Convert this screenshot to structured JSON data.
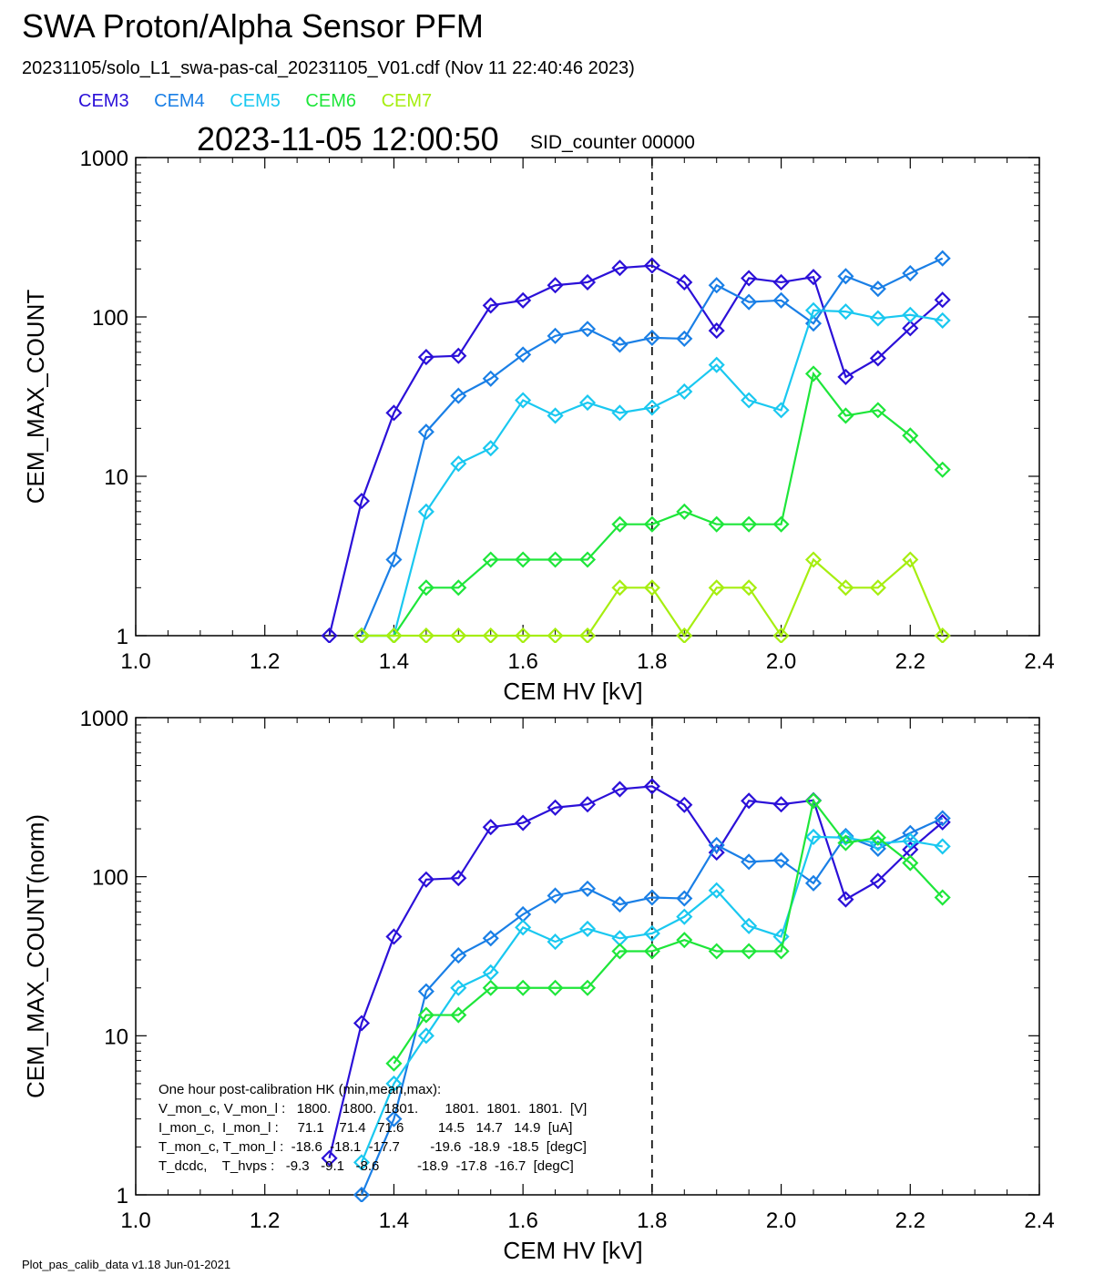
{
  "header": {
    "title": "SWA Proton/Alpha Sensor PFM",
    "file_line": "20231105/solo_L1_swa-pas-cal_20231105_V01.cdf  (Nov 11 22:40:46 2023)",
    "timestamp": "2023-11-05 12:00:50",
    "sid_counter": "SID_counter 00000"
  },
  "legend": [
    {
      "label": "CEM3",
      "color": "#2b10d8"
    },
    {
      "label": "CEM4",
      "color": "#1a7fe6"
    },
    {
      "label": "CEM5",
      "color": "#1ac8f0"
    },
    {
      "label": "CEM6",
      "color": "#1ee63a"
    },
    {
      "label": "CEM7",
      "color": "#a6ee10"
    }
  ],
  "hk_block": {
    "title": "One hour post-calibration HK (min,mean,max):",
    "rows": [
      "V_mon_c, V_mon_l :   1800.   1800.  1801.       1801.  1801.  1801.  [V]",
      "I_mon_c,  I_mon_l :     71.1    71.4   71.6         14.5   14.7   14.9  [uA]",
      "T_mon_c, T_mon_l :  -18.6  -18.1  -17.7        -19.6  -18.9  -18.5  [degC]",
      "T_dcdc,    T_hvps :   -9.3   -9.1   -8.6          -18.9  -17.8  -16.7  [degC]"
    ]
  },
  "footer": "Plot_pas_calib_data v1.18 Jun-01-2021",
  "chart_data": [
    {
      "type": "line",
      "ylabel": "CEM_MAX_COUNT",
      "xlabel": "CEM HV [kV]",
      "y_log": true,
      "xlim": [
        1.0,
        2.4
      ],
      "ylim": [
        1,
        1000
      ],
      "x_ticks": [
        "1.0",
        "1.2",
        "1.4",
        "1.6",
        "1.8",
        "2.0",
        "2.2",
        "2.4"
      ],
      "y_ticks": [
        "1",
        "10",
        "100",
        "1000"
      ],
      "vline_x": 1.8,
      "x": [
        1.3,
        1.35,
        1.4,
        1.45,
        1.5,
        1.55,
        1.6,
        1.65,
        1.7,
        1.75,
        1.8,
        1.85,
        1.9,
        1.95,
        2.0,
        2.05,
        2.1,
        2.15,
        2.2,
        2.25
      ],
      "series": [
        {
          "name": "CEM3",
          "values": [
            1,
            7,
            25,
            56,
            57,
            118,
            127,
            158,
            165,
            203,
            210,
            165,
            82,
            175,
            165,
            178,
            42,
            55,
            85,
            128
          ]
        },
        {
          "name": "CEM4",
          "values": [
            null,
            1,
            3,
            19,
            32,
            41,
            58,
            76,
            84,
            67,
            74,
            73,
            158,
            124,
            127,
            91,
            180,
            150,
            188,
            233
          ]
        },
        {
          "name": "CEM5",
          "values": [
            null,
            1,
            1,
            6,
            12,
            15,
            30,
            24,
            29,
            25,
            27,
            34,
            50,
            30,
            26,
            110,
            108,
            98,
            103,
            95
          ]
        },
        {
          "name": "CEM6",
          "values": [
            null,
            1,
            1,
            2,
            2,
            3,
            3,
            3,
            3,
            5,
            5,
            6,
            5,
            5,
            5,
            44,
            24,
            26,
            18,
            11
          ]
        },
        {
          "name": "CEM7",
          "values": [
            null,
            1,
            1,
            1,
            1,
            1,
            1,
            1,
            1,
            2,
            2,
            1,
            2,
            2,
            1,
            3,
            2,
            2,
            3,
            1
          ]
        }
      ]
    },
    {
      "type": "line",
      "ylabel": "CEM_MAX_COUNT(norm)",
      "xlabel": "CEM HV [kV]",
      "y_log": true,
      "xlim": [
        1.0,
        2.4
      ],
      "ylim": [
        1,
        1000
      ],
      "x_ticks": [
        "1.0",
        "1.2",
        "1.4",
        "1.6",
        "1.8",
        "2.0",
        "2.2",
        "2.4"
      ],
      "y_ticks": [
        "1",
        "10",
        "100",
        "1000"
      ],
      "vline_x": 1.8,
      "x": [
        1.3,
        1.35,
        1.4,
        1.45,
        1.5,
        1.55,
        1.6,
        1.65,
        1.7,
        1.75,
        1.8,
        1.85,
        1.9,
        1.95,
        2.0,
        2.05,
        2.1,
        2.15,
        2.2,
        2.25
      ],
      "series": [
        {
          "name": "CEM3",
          "values": [
            1.7,
            12,
            42,
            96,
            98,
            205,
            218,
            272,
            285,
            355,
            370,
            283,
            142,
            300,
            285,
            302,
            72,
            94,
            148,
            220
          ]
        },
        {
          "name": "CEM4",
          "values": [
            null,
            1,
            3,
            19,
            32,
            41,
            58,
            76,
            84,
            67,
            74,
            73,
            158,
            124,
            127,
            91,
            180,
            150,
            188,
            233
          ]
        },
        {
          "name": "CEM5",
          "values": [
            null,
            1.6,
            5,
            10,
            20,
            25,
            48,
            39,
            47,
            41,
            44,
            56,
            82,
            49,
            42,
            178,
            176,
            162,
            168,
            155
          ]
        },
        {
          "name": "CEM6",
          "values": [
            null,
            null,
            6.7,
            13.5,
            13.5,
            20,
            20,
            20,
            20,
            34,
            34,
            40,
            34,
            34,
            34,
            300,
            163,
            176,
            122,
            74
          ]
        }
      ]
    }
  ]
}
